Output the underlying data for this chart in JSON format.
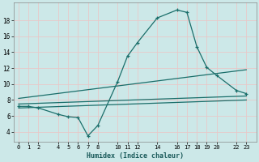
{
  "xlabel": "Humidex (Indice chaleur)",
  "bg_color": "#cce8e8",
  "grid_color": "#b8d8d8",
  "line_color": "#1a6e6a",
  "x_ticks": [
    0,
    1,
    2,
    4,
    5,
    6,
    7,
    8,
    10,
    11,
    12,
    14,
    16,
    17,
    18,
    19,
    20,
    22,
    23
  ],
  "y_ticks": [
    4,
    6,
    8,
    10,
    12,
    14,
    16,
    18
  ],
  "ylim": [
    2.8,
    20.2
  ],
  "xlim": [
    -0.5,
    24.0
  ],
  "line1_x": [
    0,
    1,
    2,
    4,
    5,
    6,
    7,
    8,
    10,
    11,
    12,
    14,
    16,
    17,
    18,
    19,
    20,
    22,
    23
  ],
  "line1_y": [
    7.2,
    7.2,
    7.0,
    6.2,
    5.9,
    5.8,
    3.5,
    4.8,
    10.3,
    13.5,
    15.2,
    18.3,
    19.3,
    19.0,
    14.7,
    12.1,
    11.1,
    9.2,
    8.8
  ],
  "line2_x": [
    0,
    23
  ],
  "line2_y": [
    7.5,
    8.5
  ],
  "line3_x": [
    0,
    23
  ],
  "line3_y": [
    8.2,
    11.8
  ],
  "line4_x": [
    0,
    23
  ],
  "line4_y": [
    7.0,
    8.0
  ]
}
